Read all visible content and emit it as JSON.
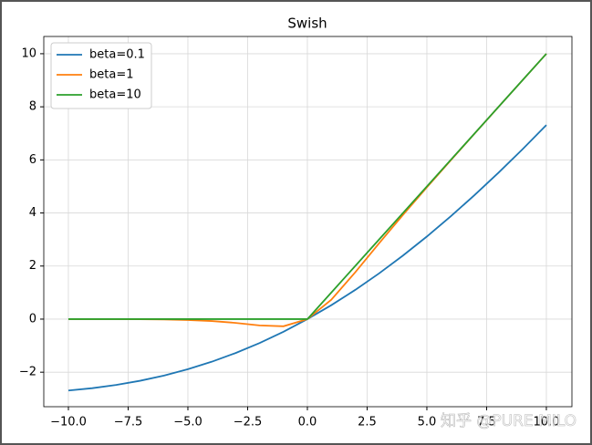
{
  "chart_data": {
    "type": "line",
    "title": "Swish",
    "x": [
      -10,
      -9,
      -8,
      -7,
      -6,
      -5,
      -4,
      -3,
      -2,
      -1,
      0,
      1,
      2,
      3,
      4,
      5,
      6,
      7,
      8,
      9,
      10
    ],
    "series": [
      {
        "name": "beta=0.1",
        "color": "#1f77b4",
        "values": [
          -2.689,
          -2.602,
          -2.48,
          -2.323,
          -2.126,
          -1.888,
          -1.605,
          -1.277,
          -0.9,
          -0.475,
          0,
          0.525,
          1.1,
          1.723,
          2.395,
          3.112,
          3.874,
          4.677,
          5.52,
          6.398,
          7.311
        ]
      },
      {
        "name": "beta=1",
        "color": "#ff7f0e",
        "values": [
          -0.0005,
          -0.0011,
          -0.0027,
          -0.0064,
          -0.0148,
          -0.0335,
          -0.0719,
          -0.1423,
          -0.2384,
          -0.2689,
          0,
          0.7311,
          1.7616,
          2.8577,
          3.9281,
          4.9665,
          5.9852,
          6.9936,
          7.9973,
          8.9989,
          9.9995
        ]
      },
      {
        "name": "beta=10",
        "color": "#2ca02c",
        "values": [
          0,
          0,
          0,
          0,
          0,
          0,
          0,
          0,
          0,
          0,
          0,
          1,
          2,
          3,
          4,
          5,
          6,
          7,
          8,
          9,
          10
        ]
      }
    ],
    "xlim": [
      -11.03,
      11.07
    ],
    "ylim": [
      -3.3,
      10.65
    ],
    "xticks": [
      {
        "value": -10,
        "label": "−10.0"
      },
      {
        "value": -7.5,
        "label": "−7.5"
      },
      {
        "value": -5,
        "label": "−5.0"
      },
      {
        "value": -2.5,
        "label": "−2.5"
      },
      {
        "value": 0,
        "label": "0.0"
      },
      {
        "value": 2.5,
        "label": "2.5"
      },
      {
        "value": 5,
        "label": "5.0"
      },
      {
        "value": 7.5,
        "label": "7.5"
      },
      {
        "value": 10,
        "label": "10.0"
      }
    ],
    "yticks": [
      {
        "value": -2,
        "label": "−2"
      },
      0,
      2,
      4,
      6,
      8,
      10
    ],
    "grid": true,
    "legend": "upper-left",
    "watermark": "知乎 @PURE MILO"
  }
}
